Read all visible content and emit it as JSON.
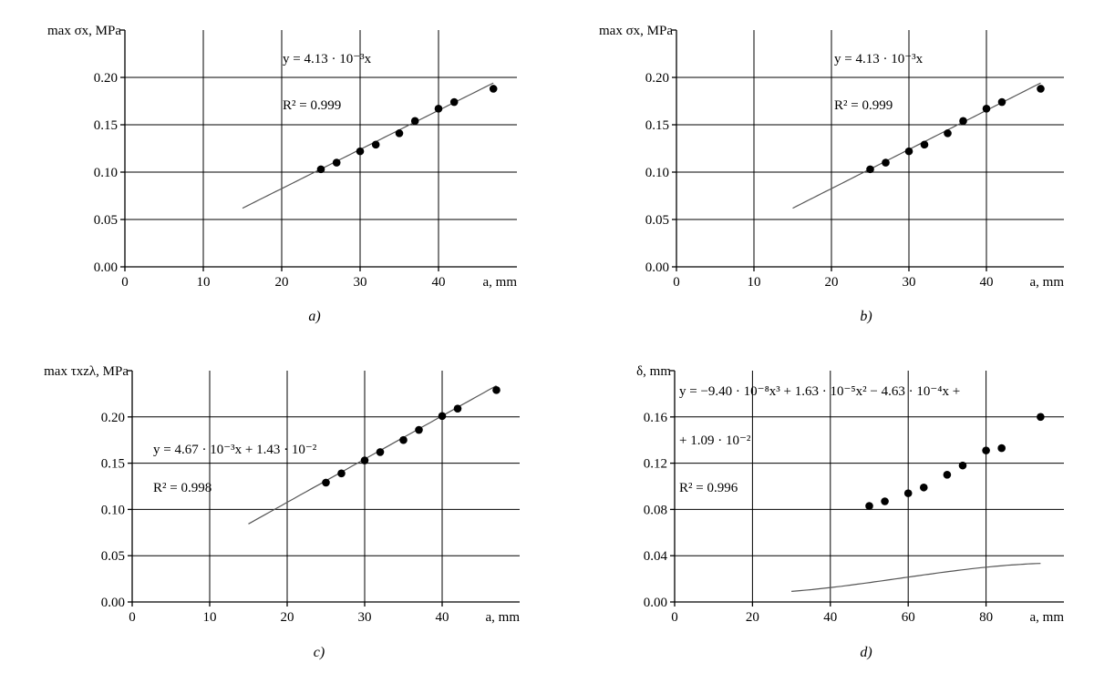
{
  "chart_data": [
    {
      "type": "scatter",
      "panel": "a)",
      "ylabel": "max σx, MPa",
      "xlabel": "a, mm",
      "xlim": [
        0,
        50
      ],
      "ylim": [
        0,
        0.25
      ],
      "xticks": [
        "0",
        "10",
        "20",
        "30",
        "40"
      ],
      "yticks": [
        "0.00",
        "0.05",
        "0.10",
        "0.15",
        "0.20"
      ],
      "yticks_values": [
        0,
        0.05,
        0.1,
        0.15,
        0.2
      ],
      "xticks_values": [
        0,
        10,
        20,
        30,
        40
      ],
      "grid": true,
      "x": [
        25,
        27,
        30,
        32,
        35,
        37,
        40,
        42,
        47
      ],
      "y": [
        0.103,
        0.11,
        0.122,
        0.129,
        0.141,
        0.154,
        0.167,
        0.174,
        0.188
      ],
      "fit": {
        "kind": "linear",
        "coef": [
          0.00413,
          0
        ],
        "xrange": [
          15,
          47
        ]
      },
      "equation": "y = 4.13 · 10⁻³x",
      "r2": "R² = 0.999"
    },
    {
      "type": "scatter",
      "panel": "b)",
      "ylabel": "max σx, MPa",
      "xlabel": "a, mm",
      "xlim": [
        0,
        50
      ],
      "ylim": [
        0,
        0.25
      ],
      "xticks": [
        "0",
        "10",
        "20",
        "30",
        "40"
      ],
      "yticks": [
        "0.00",
        "0.05",
        "0.10",
        "0.15",
        "0.20"
      ],
      "yticks_values": [
        0,
        0.05,
        0.1,
        0.15,
        0.2
      ],
      "xticks_values": [
        0,
        10,
        20,
        30,
        40
      ],
      "grid": true,
      "x": [
        25,
        27,
        30,
        32,
        35,
        37,
        40,
        42,
        47
      ],
      "y": [
        0.103,
        0.11,
        0.122,
        0.129,
        0.141,
        0.154,
        0.167,
        0.174,
        0.188
      ],
      "fit": {
        "kind": "linear",
        "coef": [
          0.00413,
          0
        ],
        "xrange": [
          15,
          47
        ]
      },
      "equation": "y = 4.13 · 10⁻³x",
      "r2": "R² = 0.999"
    },
    {
      "type": "scatter",
      "panel": "c)",
      "ylabel": "max τxzλ, MPa",
      "xlabel": "a, mm",
      "xlim": [
        0,
        50
      ],
      "ylim": [
        0,
        0.25
      ],
      "xticks": [
        "0",
        "10",
        "20",
        "30",
        "40"
      ],
      "yticks": [
        "0.00",
        "0.05",
        "0.10",
        "0.15",
        "0.20"
      ],
      "yticks_values": [
        0,
        0.05,
        0.1,
        0.15,
        0.2
      ],
      "xticks_values": [
        0,
        10,
        20,
        30,
        40
      ],
      "grid": true,
      "x": [
        25,
        27,
        30,
        32,
        35,
        37,
        40,
        42,
        47
      ],
      "y": [
        0.129,
        0.139,
        0.153,
        0.162,
        0.175,
        0.186,
        0.201,
        0.209,
        0.229
      ],
      "fit": {
        "kind": "linear",
        "coef": [
          0.00467,
          0.0143
        ],
        "xrange": [
          15,
          47
        ]
      },
      "equation": "y = 4.67 · 10⁻³x + 1.43 · 10⁻²",
      "r2": "R² = 0.998"
    },
    {
      "type": "scatter",
      "panel": "d)",
      "ylabel": "δ, mm",
      "xlabel": "a, mm",
      "xlim": [
        0,
        100
      ],
      "ylim": [
        0,
        0.2
      ],
      "xticks": [
        "0",
        "20",
        "40",
        "60",
        "80"
      ],
      "yticks": [
        "0.00",
        "0.04",
        "0.08",
        "0.12",
        "0.16"
      ],
      "yticks_values": [
        0,
        0.04,
        0.08,
        0.12,
        0.16
      ],
      "xticks_values": [
        0,
        20,
        40,
        60,
        80
      ],
      "grid": true,
      "x": [
        50,
        54,
        60,
        64,
        70,
        74,
        80,
        84,
        94
      ],
      "y": [
        0.083,
        0.087,
        0.094,
        0.099,
        0.11,
        0.118,
        0.131,
        0.133,
        0.16
      ],
      "fit": {
        "kind": "cubic",
        "coef": [
          -9.4e-08,
          1.63e-05,
          -0.000463,
          0.0109
        ],
        "xrange": [
          30,
          94
        ]
      },
      "equation": "y = −9.40 · 10⁻⁸x³ + 1.63 · 10⁻⁵x² − 4.63 · 10⁻⁴x +",
      "equation2": "+ 1.09 · 10⁻²",
      "r2": "R² = 0.996"
    }
  ]
}
